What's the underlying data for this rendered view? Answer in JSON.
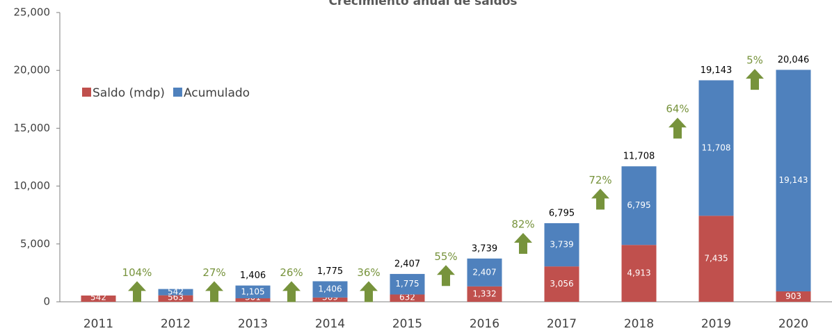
{
  "chart_data": {
    "type": "stacked_bar",
    "title": "Crecimiento anual de saldos",
    "categories": [
      "2011",
      "2012",
      "2013",
      "2014",
      "2015",
      "2016",
      "2017",
      "2018",
      "2019",
      "2020"
    ],
    "series": [
      {
        "name": "Saldo (mdp)",
        "color": "#c0504d",
        "values": [
          542,
          563,
          301,
          369,
          632,
          1332,
          3056,
          4913,
          7435,
          903
        ],
        "value_labels": [
          "542",
          "563",
          "301",
          "369",
          "632",
          "1,332",
          "3,056",
          "4,913",
          "7,435",
          "903"
        ]
      },
      {
        "name": "Acumulado",
        "color": "#4f81bd",
        "values": [
          null,
          542,
          1105,
          1406,
          1775,
          2407,
          3739,
          6795,
          11708,
          19143
        ],
        "value_labels": [
          null,
          "542",
          "1,105",
          "1,406",
          "1,775",
          "2,407",
          "3,739",
          "6,795",
          "11,708",
          "19,143"
        ]
      }
    ],
    "totals": {
      "values": [
        null,
        null,
        1406,
        1775,
        2407,
        3739,
        6795,
        11708,
        19143,
        20046
      ],
      "value_labels": [
        null,
        null,
        "1,406",
        "1,775",
        "2,407",
        "3,739",
        "6,795",
        "11,708",
        "19,143",
        "20,046"
      ]
    },
    "growth": {
      "color": "#77933c",
      "values": [
        104,
        27,
        26,
        36,
        55,
        82,
        72,
        64,
        5
      ],
      "value_labels": [
        "104%",
        "27%",
        "26%",
        "36%",
        "55%",
        "82%",
        "72%",
        "64%",
        "5%"
      ]
    },
    "ylim": [
      0,
      25000
    ],
    "yticks": [
      0,
      {
        "value": 5000,
        "label": "5,000"
      },
      {
        "value": 10000,
        "label": "10,000"
      },
      {
        "value": 15000,
        "label": "15,000"
      },
      {
        "value": 20000,
        "label": "20,000"
      },
      {
        "value": 25000,
        "label": "25,000"
      }
    ],
    "legend": "upper left"
  }
}
